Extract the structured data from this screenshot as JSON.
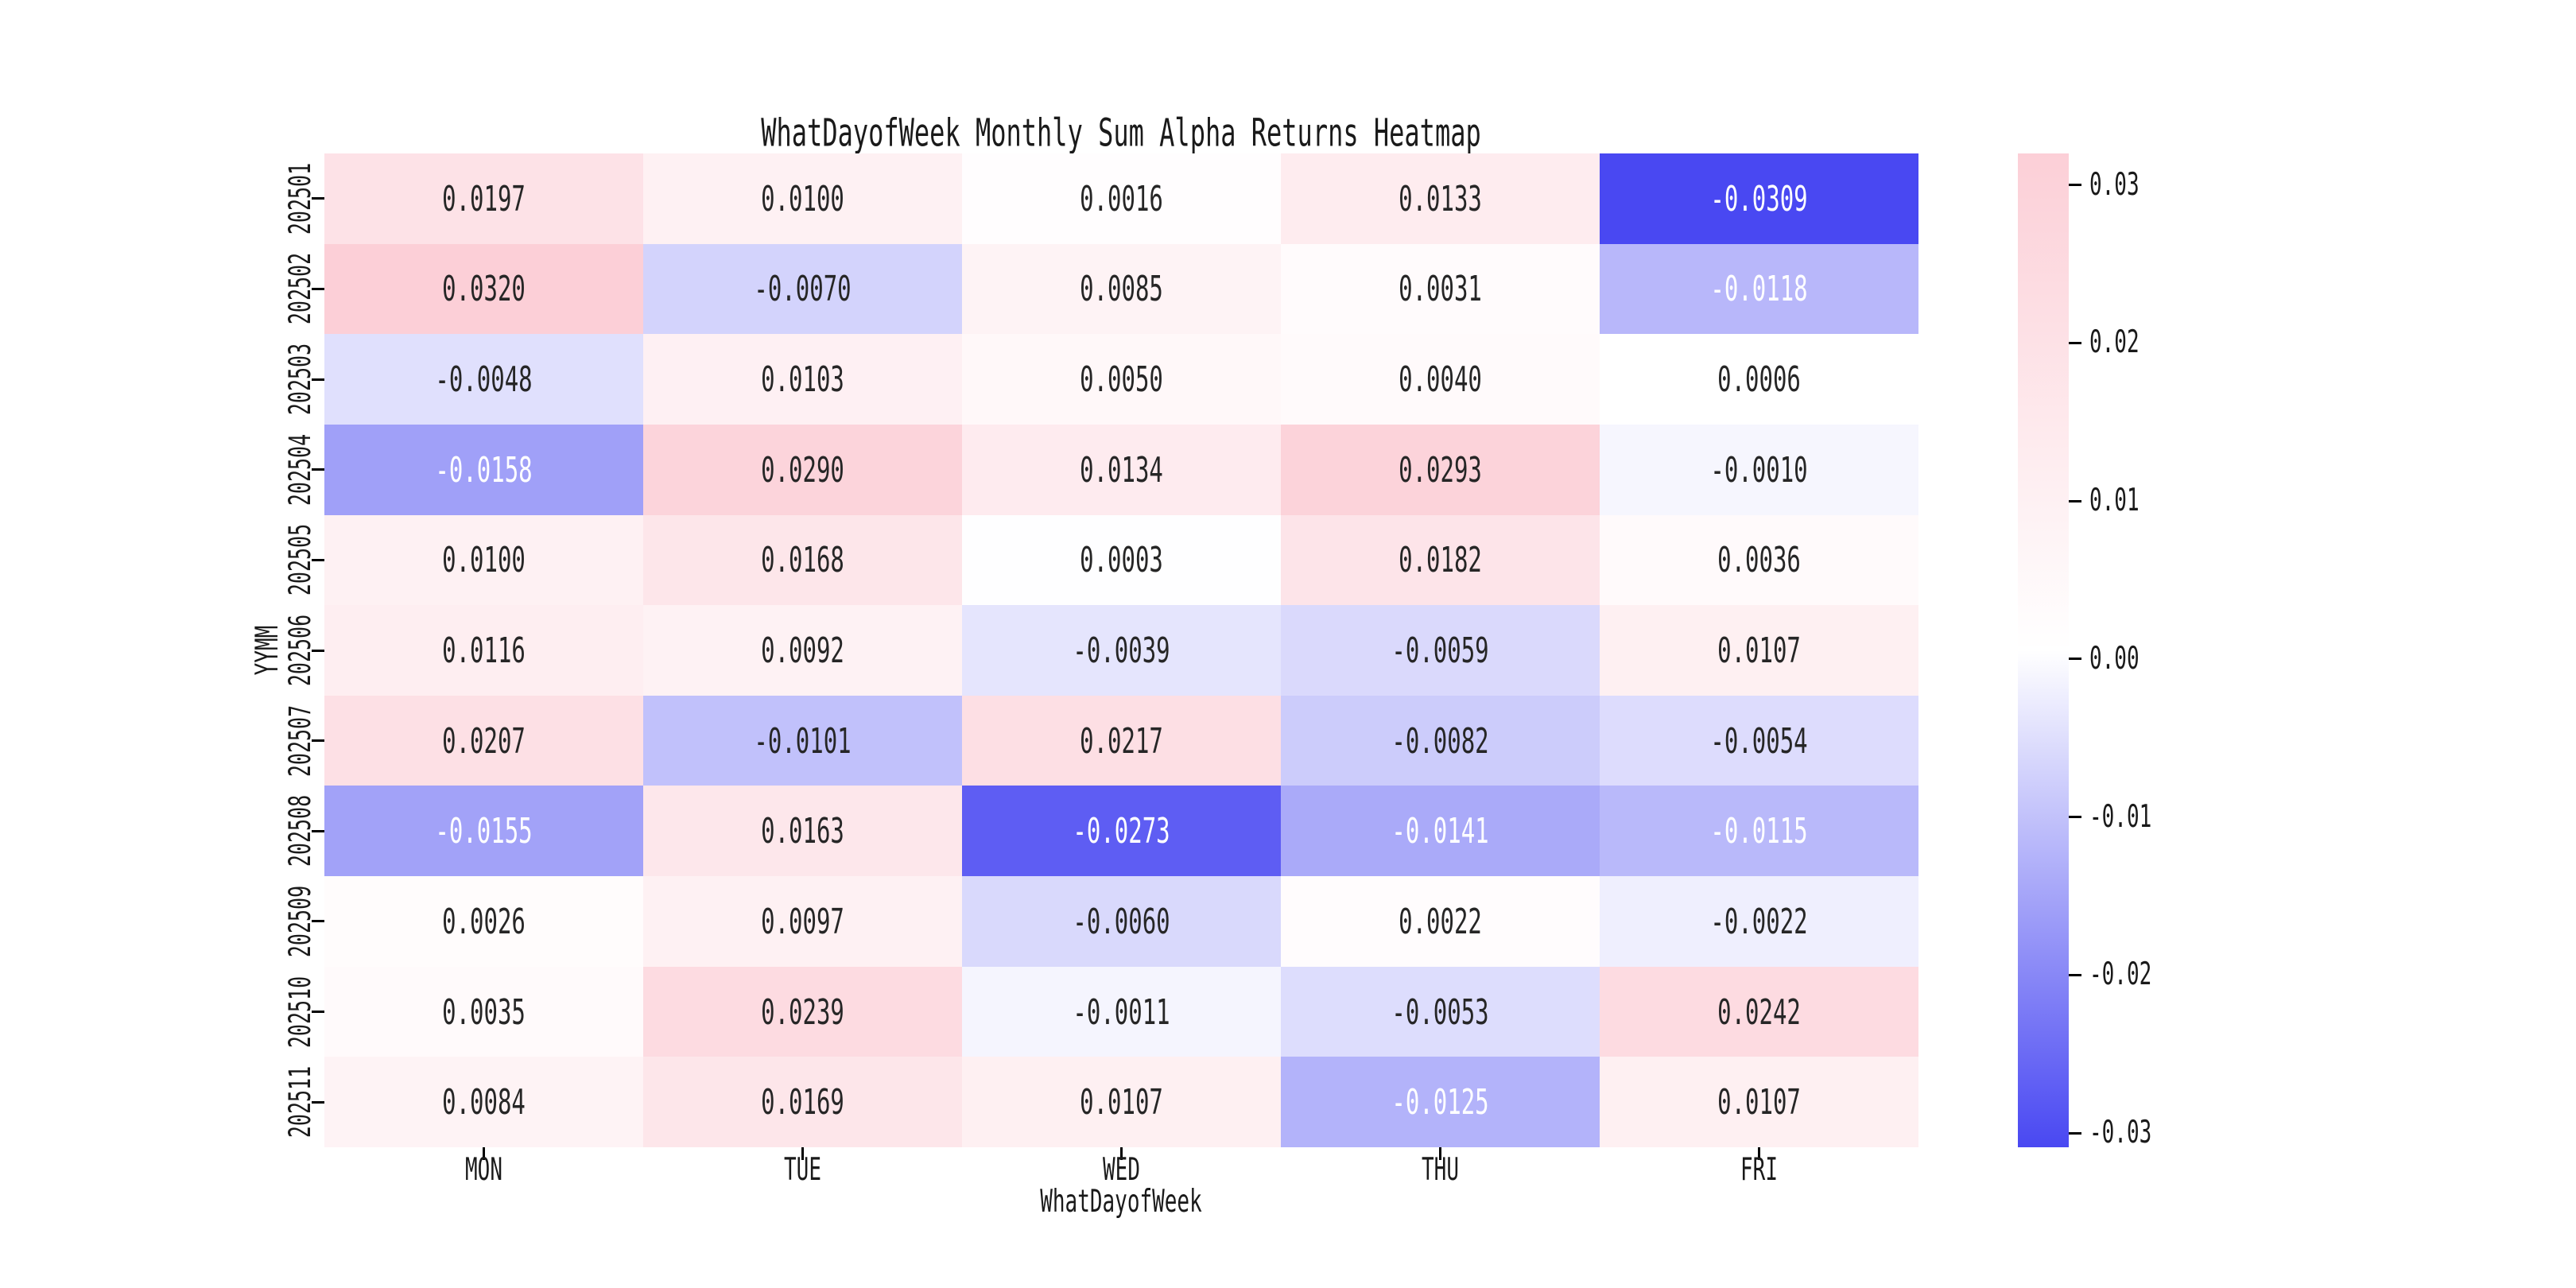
{
  "figure": {
    "background": "#ffffff"
  },
  "chart_data": {
    "type": "heatmap",
    "title": "WhatDayofWeek Monthly Sum Alpha Returns Heatmap",
    "xlabel": "WhatDayofWeek",
    "ylabel": "YYMM",
    "columns": [
      "MON",
      "TUE",
      "WED",
      "THU",
      "FRI"
    ],
    "rows": [
      "202501",
      "202502",
      "202503",
      "202504",
      "202505",
      "202506",
      "202507",
      "202508",
      "202509",
      "202510",
      "202511"
    ],
    "values": [
      [
        0.0197,
        0.01,
        0.0016,
        0.0133,
        -0.0309
      ],
      [
        0.032,
        -0.007,
        0.0085,
        0.0031,
        -0.0118
      ],
      [
        -0.0048,
        0.0103,
        0.005,
        0.004,
        0.0006
      ],
      [
        -0.0158,
        0.029,
        0.0134,
        0.0293,
        -0.001
      ],
      [
        0.01,
        0.0168,
        0.0003,
        0.0182,
        0.0036
      ],
      [
        0.0116,
        0.0092,
        -0.0039,
        -0.0059,
        0.0107
      ],
      [
        0.0207,
        -0.0101,
        0.0217,
        -0.0082,
        -0.0054
      ],
      [
        -0.0155,
        0.0163,
        -0.0273,
        -0.0141,
        -0.0115
      ],
      [
        0.0026,
        0.0097,
        -0.006,
        0.0022,
        -0.0022
      ],
      [
        0.0035,
        0.0239,
        -0.0011,
        -0.0053,
        0.0242
      ],
      [
        0.0084,
        0.0169,
        0.0107,
        -0.0125,
        0.0107
      ]
    ],
    "annotation_decimals": 4,
    "grid": false,
    "legend_position": "colorbar-right",
    "colorbar": {
      "tick_values": [
        0.03,
        0.02,
        0.01,
        0.0,
        -0.01,
        -0.02,
        -0.03
      ],
      "tick_decimals": 2,
      "vmin": -0.0309,
      "vmax": 0.032,
      "color_min": "#4948f2",
      "color_mid": "#ffffff",
      "color_max": "#fccfd7"
    },
    "annotation_colors": {
      "dark": "#262626",
      "light": "#ffffff",
      "light_if_value_at_or_below": -0.011
    }
  }
}
